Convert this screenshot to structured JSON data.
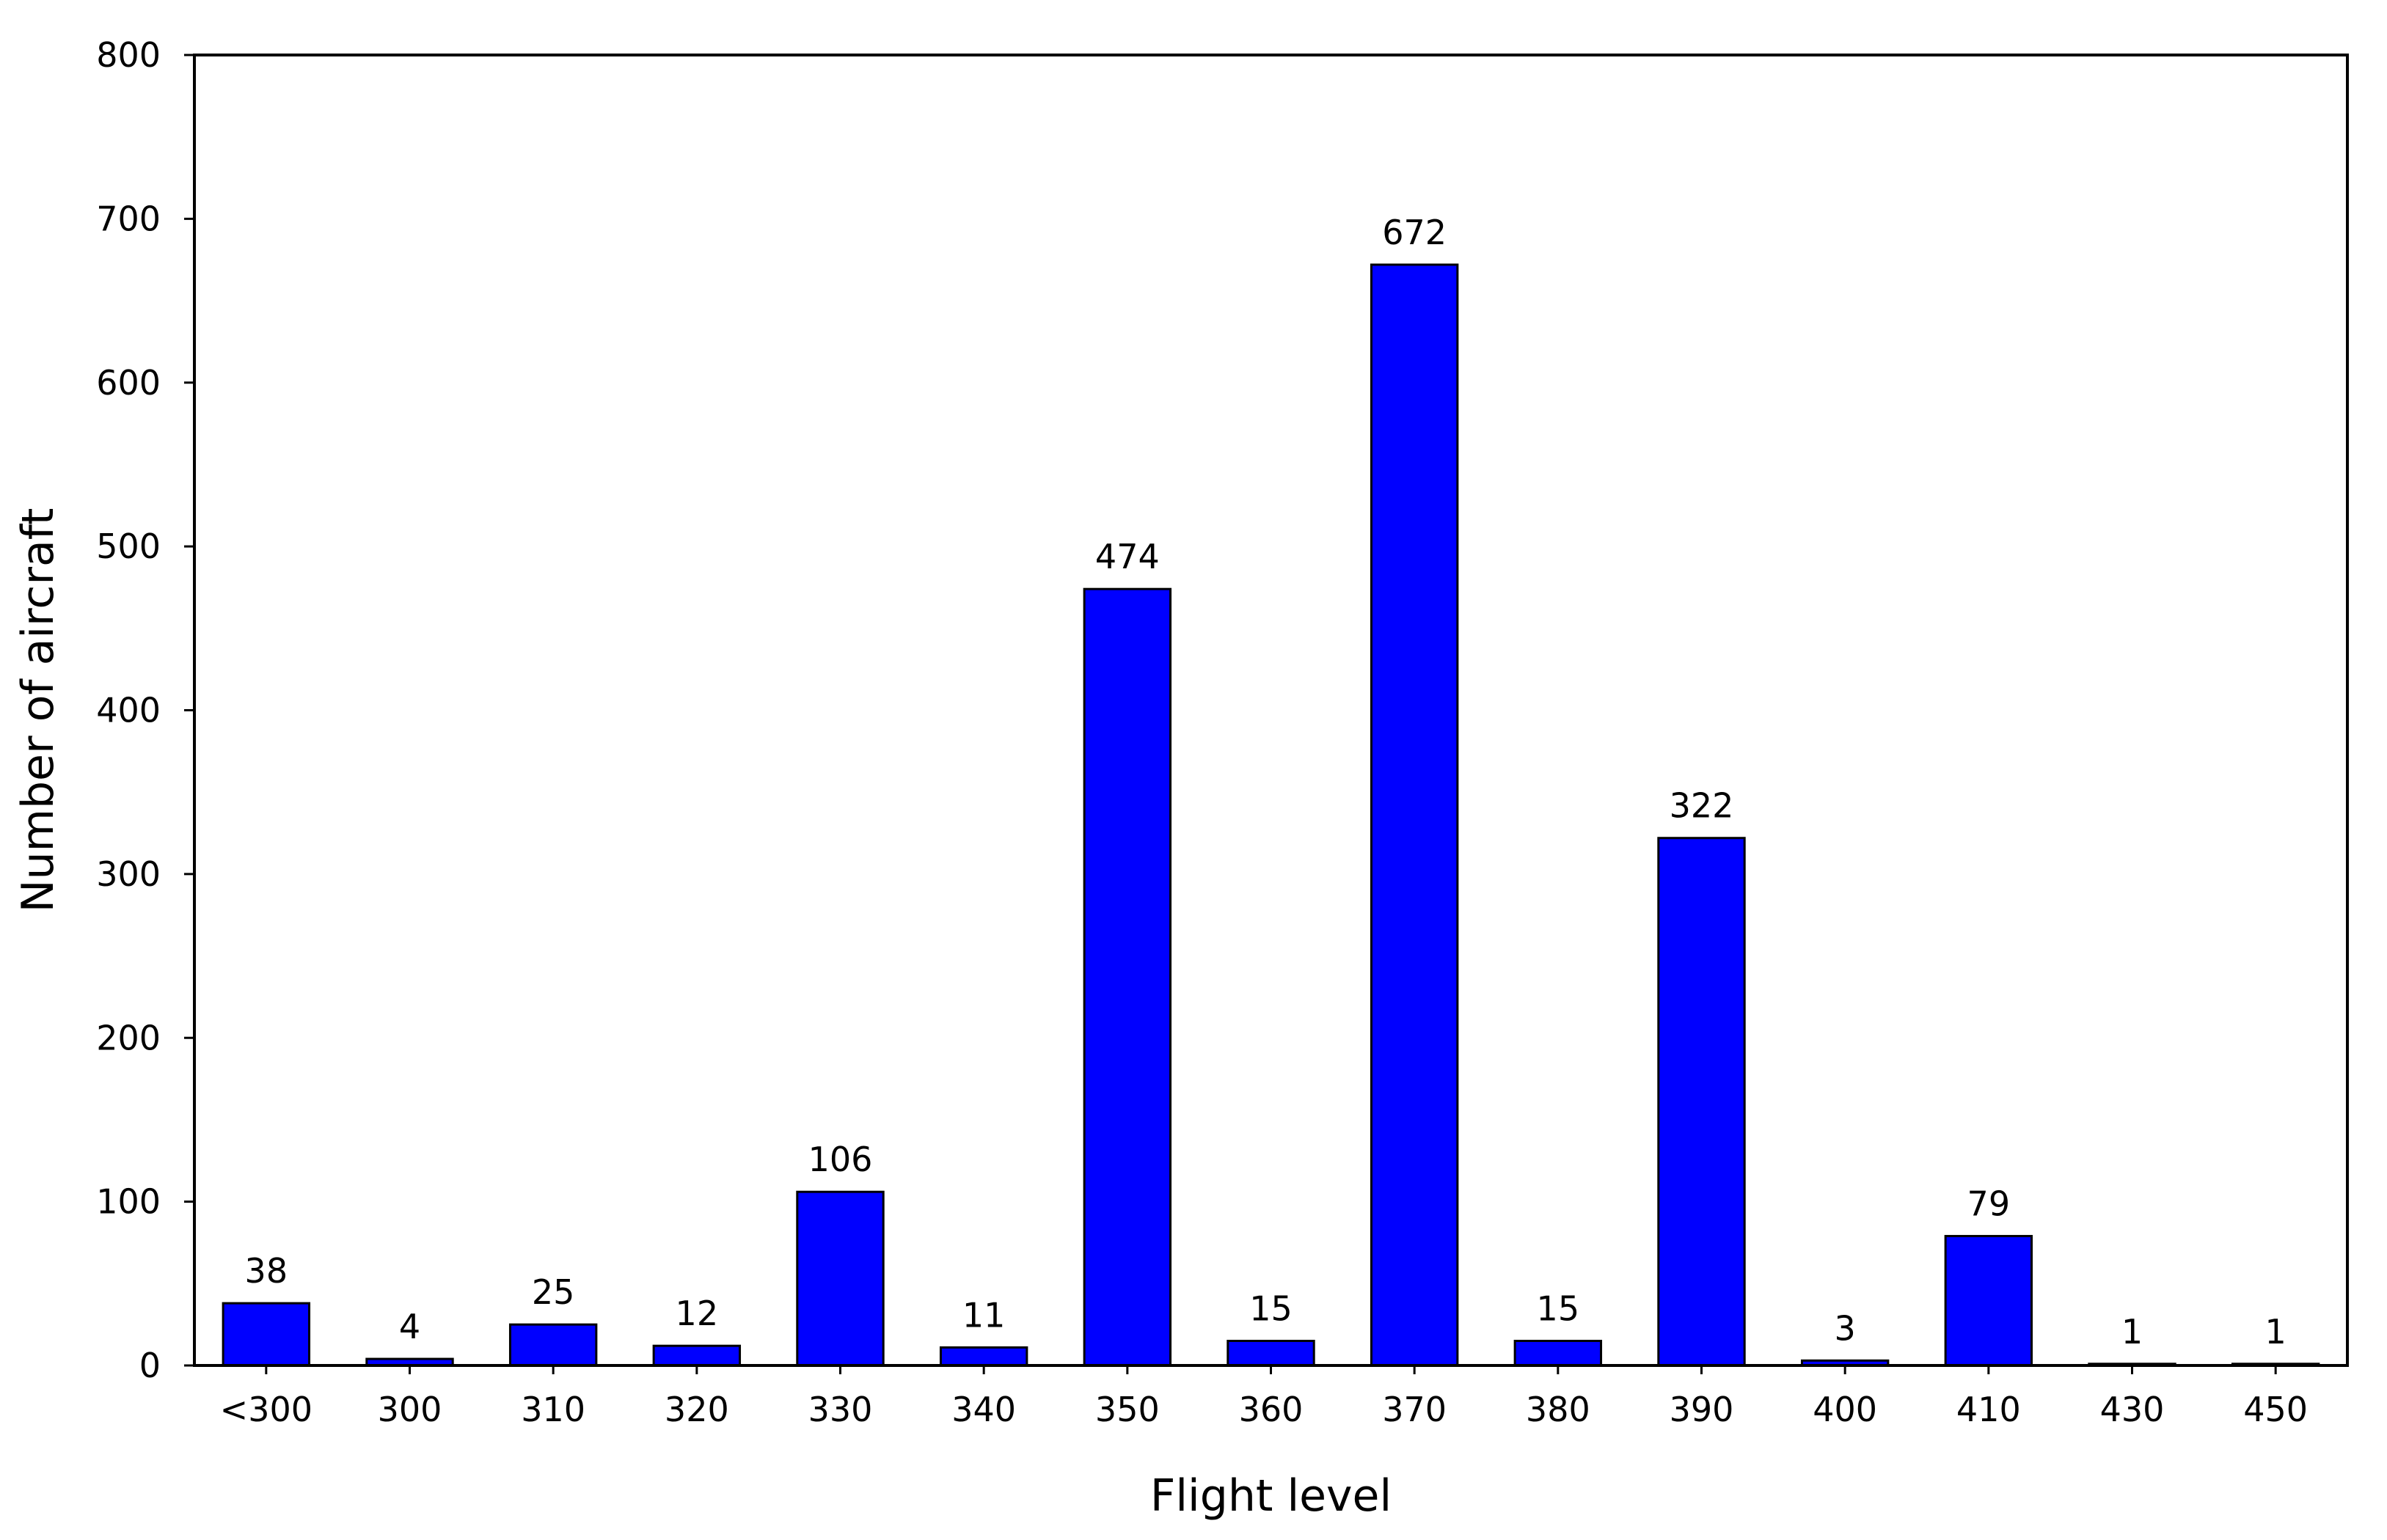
{
  "chart_data": {
    "type": "bar",
    "title": "",
    "xlabel": "Flight level",
    "ylabel": "Number of aircraft",
    "categories": [
      "<300",
      "300",
      "310",
      "320",
      "330",
      "340",
      "350",
      "360",
      "370",
      "380",
      "390",
      "400",
      "410",
      "430",
      "450"
    ],
    "values": [
      38,
      4,
      25,
      12,
      106,
      11,
      474,
      15,
      672,
      15,
      322,
      3,
      79,
      1,
      1
    ],
    "data_labels": [
      "38",
      "4",
      "25",
      "12",
      "106",
      "11",
      "474",
      "15",
      "672",
      "15",
      "322",
      "3",
      "79",
      "1",
      "1"
    ],
    "ylim": [
      0,
      800
    ],
    "yticks": [
      0,
      100,
      200,
      300,
      400,
      500,
      600,
      700,
      800
    ],
    "ytick_labels": [
      "0",
      "100",
      "200",
      "300",
      "400",
      "500",
      "600",
      "700",
      "800"
    ],
    "grid": false,
    "legend": "none",
    "bar_color": "#0000FF",
    "bar_edge_color": "#000000"
  }
}
